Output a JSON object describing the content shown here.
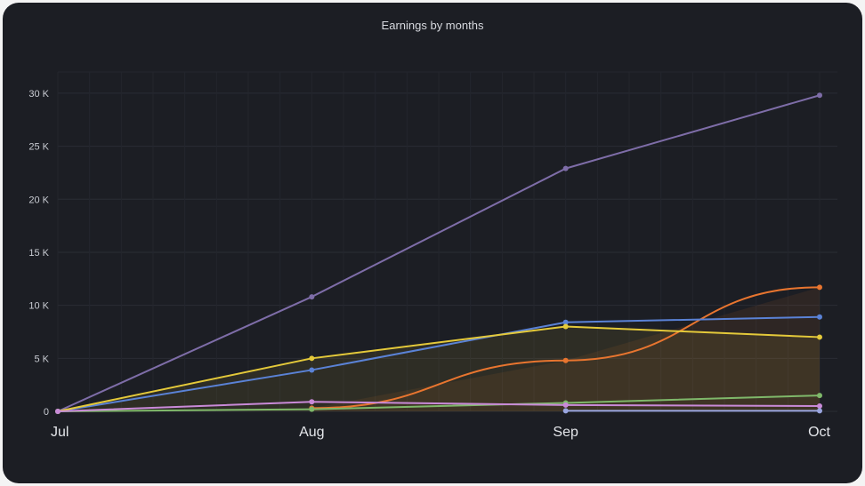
{
  "chart_data": {
    "type": "line",
    "title": "Earnings by months",
    "categories": [
      "Jul",
      "Aug",
      "Sep",
      "Oct"
    ],
    "y_tick_labels": [
      "0",
      "5 K",
      "10 K",
      "15 K",
      "20 K",
      "25 K",
      "30 K"
    ],
    "y_ticks": [
      0,
      5000,
      10000,
      15000,
      20000,
      25000,
      30000
    ],
    "ylim": [
      0,
      30000
    ],
    "grid": true,
    "series": [
      {
        "name": "series-purple",
        "color": "#7e6da8",
        "fill": false,
        "values": [
          0,
          10800,
          22900,
          29800
        ]
      },
      {
        "name": "series-orange",
        "color": "#e8752f",
        "fill": true,
        "values": [
          null,
          300,
          4800,
          11700
        ]
      },
      {
        "name": "series-blue",
        "color": "#5a82d6",
        "fill": false,
        "values": [
          0,
          3900,
          8400,
          8900
        ]
      },
      {
        "name": "series-yellow",
        "color": "#e4c93a",
        "fill": true,
        "values": [
          0,
          5000,
          8000,
          7000
        ]
      },
      {
        "name": "series-green",
        "color": "#7fb86a",
        "fill": false,
        "values": [
          0,
          200,
          800,
          1500
        ]
      },
      {
        "name": "series-pink",
        "color": "#c98ad8",
        "fill": false,
        "values": [
          0,
          900,
          600,
          500
        ]
      },
      {
        "name": "series-lavender",
        "color": "#9aa6e0",
        "fill": false,
        "values": [
          null,
          null,
          50,
          50
        ]
      }
    ]
  }
}
